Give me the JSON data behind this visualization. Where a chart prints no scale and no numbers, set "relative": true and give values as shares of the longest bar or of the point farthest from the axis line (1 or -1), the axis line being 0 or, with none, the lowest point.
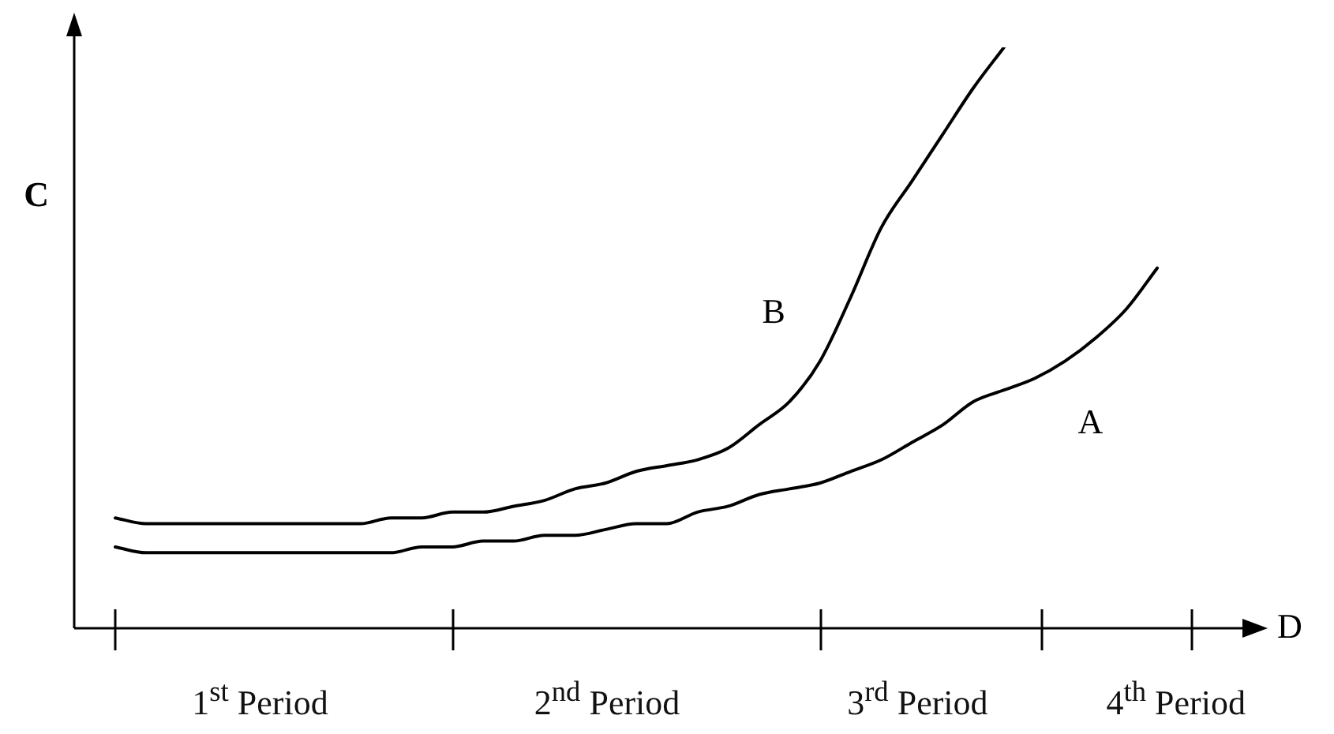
{
  "chart_data": {
    "type": "line",
    "relative": true,
    "xlabel": "D",
    "ylabel": "C",
    "categories": [
      null,
      null,
      null,
      null,
      null,
      null,
      null,
      null,
      null,
      null,
      null,
      null,
      null,
      null,
      null,
      null,
      null,
      null,
      null,
      null,
      null,
      null,
      null,
      null,
      null,
      null,
      null,
      null,
      null,
      null,
      null,
      null,
      null,
      null,
      null
    ],
    "series": [
      {
        "name": "A",
        "color": "#000000",
        "values": [
          0.14,
          0.13,
          0.13,
          0.13,
          0.13,
          0.13,
          0.13,
          0.13,
          0.13,
          0.13,
          0.14,
          0.14,
          0.15,
          0.15,
          0.16,
          0.16,
          0.17,
          0.18,
          0.18,
          0.2,
          0.21,
          0.23,
          0.24,
          0.25,
          0.27,
          0.29,
          0.32,
          0.35,
          0.39,
          0.41,
          0.43,
          0.46,
          0.5,
          0.55,
          0.62
        ]
      },
      {
        "name": "B",
        "color": "#000000",
        "values": [
          0.19,
          0.18,
          0.18,
          0.18,
          0.18,
          0.18,
          0.18,
          0.18,
          0.18,
          0.19,
          0.19,
          0.2,
          0.2,
          0.21,
          0.22,
          0.24,
          0.25,
          0.27,
          0.28,
          0.29,
          0.31,
          0.35,
          0.39,
          0.46,
          0.57,
          0.69,
          0.77,
          0.85,
          0.93,
          1,
          null,
          null,
          null,
          null,
          null
        ]
      }
    ],
    "annotations": [
      "1$^{st}$ Period",
      "2$^{nd}$ Period",
      "3$^{rd}$ Period",
      "4$^{th}$ Period"
    ],
    "legend": false,
    "marker": "none",
    "line_style": "solid"
  }
}
